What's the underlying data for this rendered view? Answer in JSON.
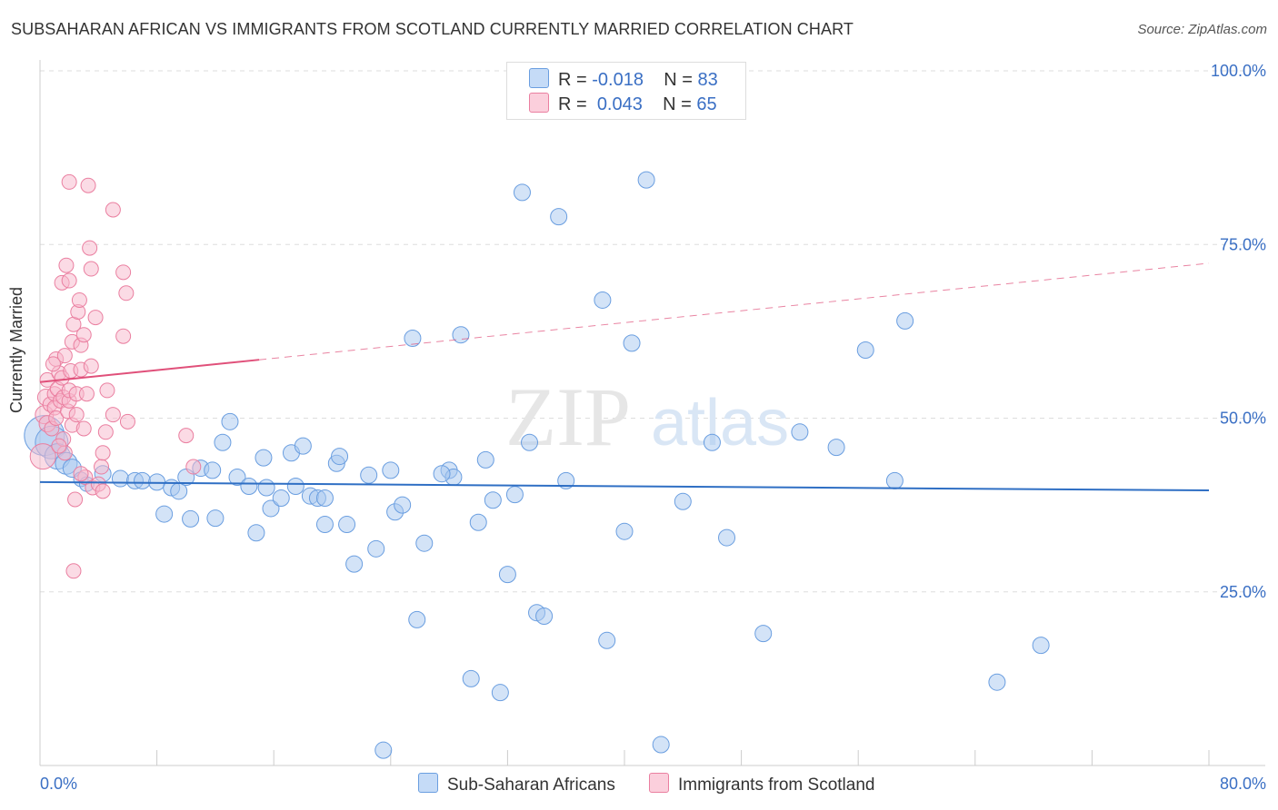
{
  "title": "SUBSAHARAN AFRICAN VS IMMIGRANTS FROM SCOTLAND CURRENTLY MARRIED CORRELATION CHART",
  "source": "Source: ZipAtlas.com",
  "watermark": {
    "zip": "ZIP",
    "atlas": "atlas"
  },
  "legend_top": {
    "series1": {
      "r_label": "R =",
      "r_value": "-0.018",
      "n_label": "N =",
      "n_value": "83"
    },
    "series2": {
      "r_label": "R =",
      "r_value": "0.043",
      "n_label": "N =",
      "n_value": "65"
    }
  },
  "colors": {
    "blue_fill": "#a8c8f0",
    "blue_stroke": "#6a9ee0",
    "blue_line": "#2f6fc4",
    "pink_fill": "#f8b8cc",
    "pink_stroke": "#ea7fa0",
    "pink_line": "#e0507a",
    "tick_label": "#3a6fc4",
    "grid": "#dddddd"
  },
  "chart_data": {
    "type": "scatter",
    "title": "SUBSAHARAN AFRICAN VS IMMIGRANTS FROM SCOTLAND CURRENTLY MARRIED CORRELATION CHART",
    "xlabel": "",
    "ylabel": "Currently Married",
    "xlim": [
      0,
      80
    ],
    "ylim": [
      0,
      100
    ],
    "x_tick_labels": [
      "0.0%",
      "80.0%"
    ],
    "y_ticks": [
      25,
      50,
      75,
      100
    ],
    "y_tick_labels": [
      "25.0%",
      "50.0%",
      "75.0%",
      "100.0%"
    ],
    "grid": true,
    "legend_position": "bottom",
    "series": [
      {
        "name": "Sub-Saharan Africans",
        "color": "#a8c8f0",
        "trend": {
          "x": [
            0,
            80
          ],
          "y": [
            40.8,
            39.6
          ],
          "dashed_from": null
        },
        "points": [
          [
            0.3,
            47.5,
            22
          ],
          [
            0.8,
            46.5,
            18
          ],
          [
            1.2,
            44.5,
            14
          ],
          [
            1.8,
            43.5,
            12
          ],
          [
            2.2,
            42.8,
            10
          ],
          [
            2.8,
            41.2,
            8
          ],
          [
            3.2,
            40.5,
            8
          ],
          [
            4.3,
            42.0,
            9
          ],
          [
            5.5,
            41.3,
            9
          ],
          [
            6.5,
            41.0,
            9
          ],
          [
            7.0,
            41.0,
            9
          ],
          [
            8.0,
            40.8,
            9
          ],
          [
            8.5,
            36.2,
            9
          ],
          [
            9.0,
            40.0,
            9
          ],
          [
            9.5,
            39.5,
            9
          ],
          [
            10.0,
            41.5,
            9
          ],
          [
            10.3,
            35.5,
            9
          ],
          [
            11.0,
            42.8,
            9
          ],
          [
            11.8,
            42.5,
            9
          ],
          [
            12.0,
            35.6,
            9
          ],
          [
            12.5,
            46.5,
            9
          ],
          [
            13.0,
            49.5,
            9
          ],
          [
            13.5,
            41.5,
            9
          ],
          [
            14.3,
            40.2,
            9
          ],
          [
            14.8,
            33.5,
            9
          ],
          [
            15.3,
            44.3,
            9
          ],
          [
            15.5,
            40.0,
            9
          ],
          [
            15.8,
            37.0,
            9
          ],
          [
            16.5,
            38.5,
            9
          ],
          [
            17.2,
            45.0,
            9
          ],
          [
            17.5,
            40.2,
            9
          ],
          [
            18.0,
            46.0,
            9
          ],
          [
            18.5,
            38.8,
            9
          ],
          [
            19.0,
            38.5,
            9
          ],
          [
            19.5,
            38.5,
            9
          ],
          [
            19.5,
            34.7,
            9
          ],
          [
            20.3,
            43.5,
            9
          ],
          [
            20.5,
            44.5,
            9
          ],
          [
            21.0,
            34.7,
            9
          ],
          [
            21.5,
            29.0,
            9
          ],
          [
            22.5,
            41.8,
            9
          ],
          [
            23.0,
            31.2,
            9
          ],
          [
            24.0,
            42.5,
            9
          ],
          [
            24.3,
            36.5,
            9
          ],
          [
            24.8,
            37.5,
            9
          ],
          [
            25.5,
            61.5,
            9
          ],
          [
            25.8,
            21.0,
            9
          ],
          [
            26.3,
            32.0,
            9
          ],
          [
            28.0,
            42.5,
            9
          ],
          [
            28.3,
            41.5,
            9
          ],
          [
            28.8,
            62.0,
            9
          ],
          [
            29.5,
            12.5,
            9
          ],
          [
            30.0,
            35.0,
            9
          ],
          [
            30.5,
            44.0,
            9
          ],
          [
            31.0,
            38.2,
            9
          ],
          [
            31.5,
            10.5,
            9
          ],
          [
            32.0,
            27.5,
            9
          ],
          [
            32.5,
            39.0,
            9
          ],
          [
            33.0,
            82.5,
            9
          ],
          [
            33.5,
            46.5,
            9
          ],
          [
            34.0,
            22.0,
            9
          ],
          [
            34.5,
            21.5,
            9
          ],
          [
            35.5,
            79.0,
            9
          ],
          [
            38.5,
            67.0,
            9
          ],
          [
            38.8,
            18.0,
            9
          ],
          [
            40.0,
            33.7,
            9
          ],
          [
            40.5,
            60.8,
            9
          ],
          [
            41.5,
            84.3,
            9
          ],
          [
            42.5,
            3.0,
            9
          ],
          [
            46.0,
            46.5,
            9
          ],
          [
            47.0,
            32.8,
            9
          ],
          [
            49.5,
            19.0,
            9
          ],
          [
            52.0,
            48.0,
            9
          ],
          [
            54.5,
            45.8,
            9
          ],
          [
            56.5,
            59.8,
            9
          ],
          [
            58.5,
            41.0,
            9
          ],
          [
            59.2,
            64.0,
            9
          ],
          [
            65.5,
            12.0,
            9
          ],
          [
            68.5,
            17.3,
            9
          ],
          [
            23.5,
            2.2,
            9
          ],
          [
            27.5,
            42.0,
            9
          ],
          [
            36.0,
            41.0,
            9
          ],
          [
            44.0,
            38.0,
            9
          ]
        ]
      },
      {
        "name": "Immigrants from Scotland",
        "color": "#f8b8cc",
        "trend": {
          "x": [
            0,
            80
          ],
          "y": [
            55.2,
            72.3
          ],
          "dashed_from": 15
        },
        "points": [
          [
            0.2,
            44.5,
            14
          ],
          [
            0.3,
            50.5,
            10
          ],
          [
            0.4,
            53.0,
            9
          ],
          [
            0.5,
            49.2,
            9
          ],
          [
            0.5,
            55.5,
            8
          ],
          [
            0.7,
            52.0,
            8
          ],
          [
            0.8,
            48.5,
            8
          ],
          [
            1.0,
            51.5,
            8
          ],
          [
            1.0,
            53.5,
            8
          ],
          [
            1.1,
            58.5,
            8
          ],
          [
            1.1,
            50.0,
            8
          ],
          [
            1.2,
            54.2,
            8
          ],
          [
            1.3,
            56.5,
            8
          ],
          [
            1.4,
            52.5,
            8
          ],
          [
            1.5,
            69.5,
            8
          ],
          [
            1.5,
            55.8,
            8
          ],
          [
            1.6,
            53.0,
            8
          ],
          [
            1.7,
            59.0,
            8
          ],
          [
            1.7,
            45.0,
            8
          ],
          [
            1.8,
            72.0,
            8
          ],
          [
            1.9,
            51.0,
            8
          ],
          [
            2.0,
            69.8,
            8
          ],
          [
            2.0,
            52.5,
            8
          ],
          [
            2.0,
            54.0,
            8
          ],
          [
            2.1,
            56.8,
            8
          ],
          [
            2.2,
            61.0,
            8
          ],
          [
            2.2,
            49.0,
            8
          ],
          [
            2.3,
            63.5,
            8
          ],
          [
            2.3,
            28.0,
            8
          ],
          [
            2.4,
            38.3,
            8
          ],
          [
            2.5,
            53.5,
            8
          ],
          [
            2.6,
            65.3,
            8
          ],
          [
            2.7,
            67.0,
            8
          ],
          [
            2.8,
            60.5,
            8
          ],
          [
            2.8,
            57.0,
            8
          ],
          [
            3.0,
            62.0,
            8
          ],
          [
            3.0,
            48.5,
            8
          ],
          [
            3.1,
            41.5,
            8
          ],
          [
            3.2,
            53.5,
            8
          ],
          [
            3.3,
            83.5,
            8
          ],
          [
            3.4,
            74.5,
            8
          ],
          [
            3.5,
            57.5,
            8
          ],
          [
            3.5,
            71.5,
            8
          ],
          [
            3.6,
            40.0,
            8
          ],
          [
            3.8,
            64.5,
            8
          ],
          [
            4.0,
            40.5,
            8
          ],
          [
            4.2,
            43.0,
            8
          ],
          [
            4.3,
            45.0,
            8
          ],
          [
            4.3,
            39.5,
            8
          ],
          [
            4.5,
            48.0,
            8
          ],
          [
            4.6,
            54.0,
            8
          ],
          [
            5.0,
            80.0,
            8
          ],
          [
            5.0,
            50.5,
            8
          ],
          [
            5.7,
            71.0,
            8
          ],
          [
            5.7,
            61.8,
            8
          ],
          [
            5.9,
            68.0,
            8
          ],
          [
            6.0,
            49.5,
            8
          ],
          [
            2.0,
            84.0,
            8
          ],
          [
            10.0,
            47.5,
            8
          ],
          [
            10.5,
            43.0,
            8
          ],
          [
            1.6,
            47.0,
            8
          ],
          [
            2.8,
            42.0,
            8
          ],
          [
            0.9,
            57.8,
            8
          ],
          [
            1.3,
            46.0,
            8
          ],
          [
            2.5,
            50.5,
            8
          ]
        ]
      }
    ]
  },
  "legend_bottom": {
    "item1": "Sub-Saharan Africans",
    "item2": "Immigrants from Scotland"
  }
}
